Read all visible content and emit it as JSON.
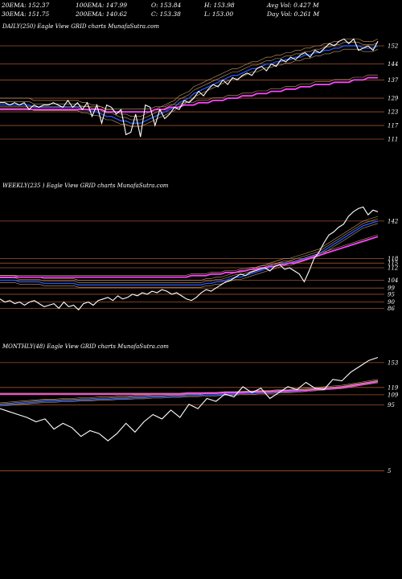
{
  "header": {
    "ema20": "20EMA: 152.37",
    "ema100": "100EMA: 147.99",
    "open": "O: 153.84",
    "high": "H: 153.98",
    "avg_vol": "Avg Vol: 0.427 M",
    "ema30": "30EMA: 151.75",
    "ema200": "200EMA: 140.62",
    "close": "C: 153.38",
    "low": "L: 153.00",
    "day_vol": "Day Vol: 0.261 M"
  },
  "colors": {
    "price": "#ffffff",
    "ema_short": "#2255ee",
    "ema_long": "#ff44ff",
    "level_lines": "#a0522d",
    "ema_mid": "#c8a070"
  },
  "chart_data": [
    {
      "type": "line",
      "label": "DAILY(250) Eagle View GRID charts MunafaSutra.com",
      "y_ticks": [
        152,
        144,
        137,
        129,
        123,
        117,
        111
      ],
      "ylim": [
        105,
        158
      ],
      "price": [
        127,
        127,
        126,
        127,
        126,
        127,
        124,
        126,
        125,
        126,
        126,
        127,
        126,
        125,
        128,
        125,
        127,
        124,
        127,
        121,
        126,
        118,
        126,
        125,
        122,
        124,
        113,
        114,
        122,
        112,
        126,
        125,
        117,
        124,
        120,
        122,
        125,
        124,
        128,
        127,
        129,
        132,
        130,
        133,
        135,
        134,
        137,
        135,
        138,
        137,
        139,
        140,
        139,
        142,
        143,
        141,
        144,
        143,
        146,
        145,
        147,
        146,
        148,
        149,
        147,
        150,
        149,
        151,
        153,
        152,
        154,
        155,
        153,
        155,
        150,
        151,
        152,
        150,
        154
      ],
      "ema_short": [
        126,
        126,
        126,
        126,
        126,
        126,
        126,
        125,
        125,
        125,
        125,
        125,
        125,
        125,
        125,
        125,
        125,
        124,
        124,
        123,
        123,
        122,
        121,
        121,
        120,
        119,
        119,
        118,
        118,
        118,
        119,
        120,
        121,
        122,
        123,
        124,
        125,
        127,
        128,
        129,
        131,
        132,
        133,
        134,
        135,
        136,
        137,
        138,
        139,
        139,
        140,
        141,
        142,
        142,
        143,
        144,
        144,
        145,
        145,
        146,
        146,
        147,
        147,
        148,
        148,
        149,
        149,
        150,
        150,
        151,
        151,
        152,
        152,
        152,
        152,
        151,
        151,
        151,
        152
      ],
      "ema_long": [
        124,
        124,
        124,
        124,
        124,
        124,
        124,
        124,
        124,
        124,
        124,
        124,
        124,
        124,
        124,
        124,
        124,
        124,
        124,
        124,
        124,
        124,
        123,
        123,
        123,
        123,
        123,
        123,
        123,
        123,
        123,
        123,
        124,
        124,
        124,
        125,
        125,
        125,
        126,
        126,
        126,
        127,
        127,
        127,
        128,
        128,
        128,
        129,
        129,
        129,
        130,
        130,
        130,
        131,
        131,
        131,
        132,
        132,
        132,
        133,
        133,
        133,
        134,
        134,
        134,
        135,
        135,
        135,
        135,
        136,
        136,
        136,
        136,
        137,
        137,
        137,
        138,
        138,
        138
      ]
    },
    {
      "type": "line",
      "label": "WEEKLY(235 ) Eagle View GRID charts MunafaSutra.com",
      "y_ticks": [
        142,
        118,
        115,
        112,
        104,
        99,
        95,
        90,
        86
      ],
      "ylim": [
        80,
        160
      ],
      "price": [
        92,
        90,
        91,
        89,
        90,
        88,
        90,
        91,
        89,
        87,
        88,
        89,
        86,
        90,
        87,
        88,
        85,
        89,
        90,
        88,
        91,
        92,
        93,
        91,
        94,
        92,
        93,
        95,
        94,
        96,
        95,
        97,
        96,
        98,
        97,
        95,
        96,
        94,
        92,
        91,
        93,
        96,
        98,
        97,
        99,
        101,
        103,
        104,
        106,
        108,
        107,
        109,
        110,
        111,
        112,
        110,
        113,
        114,
        111,
        112,
        110,
        108,
        103,
        110,
        118,
        122,
        128,
        133,
        135,
        138,
        140,
        145,
        148,
        150,
        151,
        146,
        149,
        148
      ],
      "ema_short": [
        104,
        104,
        104,
        104,
        103,
        103,
        103,
        103,
        103,
        102,
        102,
        102,
        102,
        102,
        102,
        102,
        101,
        101,
        101,
        101,
        101,
        101,
        101,
        101,
        101,
        101,
        101,
        101,
        101,
        101,
        101,
        101,
        101,
        101,
        101,
        101,
        101,
        101,
        101,
        101,
        101,
        101,
        102,
        102,
        103,
        103,
        104,
        105,
        106,
        106,
        107,
        108,
        109,
        110,
        111,
        112,
        113,
        114,
        115,
        115,
        116,
        117,
        118,
        119,
        120,
        121,
        123,
        125,
        127,
        129,
        131,
        133,
        135,
        137,
        139,
        140,
        141,
        142
      ],
      "ema_long": [
        106,
        106,
        106,
        106,
        106,
        106,
        106,
        106,
        106,
        106,
        106,
        106,
        106,
        106,
        106,
        106,
        106,
        106,
        106,
        106,
        106,
        106,
        106,
        106,
        106,
        106,
        106,
        106,
        106,
        106,
        106,
        106,
        106,
        106,
        106,
        106,
        106,
        106,
        106,
        107,
        107,
        107,
        107,
        108,
        108,
        108,
        109,
        109,
        109,
        110,
        110,
        111,
        111,
        112,
        112,
        113,
        113,
        114,
        114,
        115,
        115,
        116,
        117,
        118,
        119,
        120,
        121,
        122,
        123,
        124,
        125,
        126,
        127,
        128,
        129,
        130,
        131,
        132
      ]
    },
    {
      "type": "line",
      "label": "MONTHLY(48) Eagle View GRID charts MunafaSutra.com",
      "y_ticks": [
        153,
        119,
        109,
        95,
        5
      ],
      "ylim": [
        0,
        165
      ],
      "price": [
        90,
        86,
        82,
        78,
        72,
        76,
        62,
        70,
        64,
        52,
        60,
        56,
        46,
        56,
        70,
        58,
        72,
        82,
        76,
        88,
        78,
        96,
        90,
        104,
        100,
        110,
        106,
        120,
        112,
        118,
        104,
        112,
        120,
        116,
        126,
        118,
        116,
        130,
        128,
        140,
        148,
        156,
        160
      ],
      "ema_short": [
        95,
        96,
        97,
        98,
        99,
        100,
        100,
        101,
        101,
        102,
        102,
        103,
        103,
        104,
        104,
        105,
        105,
        106,
        106,
        107,
        107,
        108,
        108,
        109,
        109,
        110,
        110,
        111,
        111,
        112,
        112,
        113,
        113,
        114,
        115,
        116,
        117,
        118,
        119,
        121,
        123,
        125,
        127
      ],
      "ema_long": [
        110,
        110,
        110,
        110,
        110,
        110,
        110,
        110,
        110,
        110,
        110,
        110,
        110,
        110,
        110,
        110,
        110,
        110,
        110,
        110,
        110,
        111,
        111,
        111,
        111,
        112,
        112,
        112,
        113,
        113,
        113,
        114,
        114,
        115,
        115,
        116,
        117,
        118,
        119,
        121,
        123,
        125,
        127
      ]
    }
  ]
}
